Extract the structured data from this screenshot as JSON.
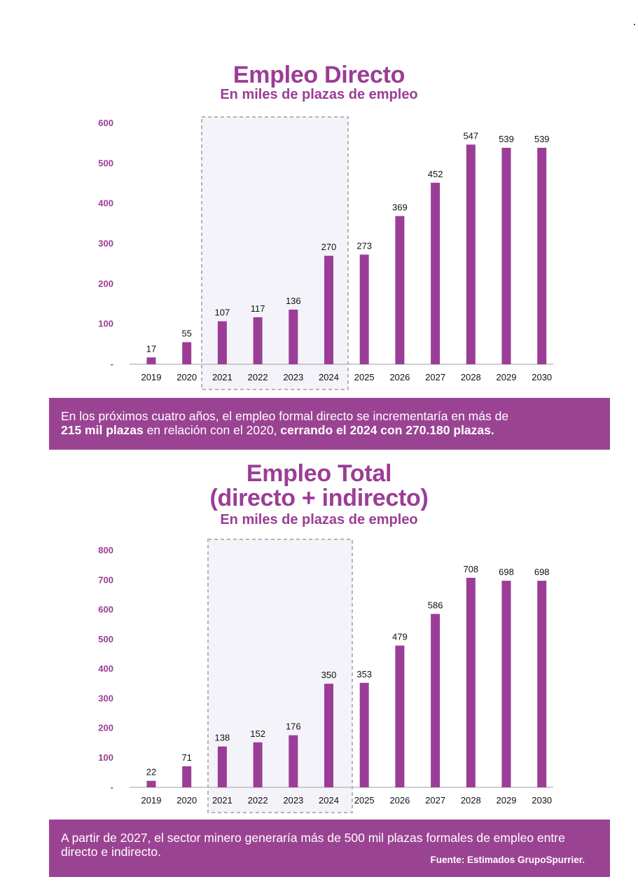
{
  "colors": {
    "bar": "#9b3d96",
    "accent": "#9b3d96",
    "banner": "#9b4393",
    "highlight_fill": "#f3f3f9",
    "highlight_border": "#b5b5b5"
  },
  "chart1": {
    "title": "Empleo Directo",
    "subtitle": "En miles de plazas de empleo"
  },
  "banner1": {
    "line1": "En los próximos cuatro años, el empleo formal directo se incrementaría en más de",
    "bold1": "215 mil plazas",
    "text2": " en relación con el 2020, ",
    "bold2": "cerrando el 2024 con 270.180 plazas."
  },
  "chart2": {
    "title_line1": "Empleo Total",
    "title_line2": "(directo + indirecto)",
    "subtitle": "En miles de plazas de empleo"
  },
  "banner2": {
    "text": "A partir de 2027, el sector minero generaría más de 500 mil plazas formales de empleo entre directo e indirecto.",
    "source": "Fuente: Estimados GrupoSpurrier."
  },
  "chart_data": [
    {
      "type": "bar",
      "title": "Empleo Directo",
      "subtitle": "En miles de plazas de empleo",
      "categories": [
        "2019",
        "2020",
        "2021",
        "2022",
        "2023",
        "2024",
        "2025",
        "2026",
        "2027",
        "2028",
        "2029",
        "2030"
      ],
      "values": [
        17,
        55,
        107,
        117,
        136,
        270,
        273,
        369,
        452,
        547,
        539,
        539
      ],
      "y_ticks": [
        "-",
        "100",
        "200",
        "300",
        "400",
        "500",
        "600"
      ],
      "ylim": [
        0,
        600
      ],
      "highlighted_range": [
        "2021",
        "2024"
      ],
      "grid": false
    },
    {
      "type": "bar",
      "title": "Empleo Total (directo + indirecto)",
      "subtitle": "En miles de plazas de empleo",
      "categories": [
        "2019",
        "2020",
        "2021",
        "2022",
        "2023",
        "2024",
        "2025",
        "2026",
        "2027",
        "2028",
        "2029",
        "2030"
      ],
      "values": [
        22,
        71,
        138,
        152,
        176,
        350,
        353,
        479,
        586,
        708,
        698,
        698
      ],
      "y_ticks": [
        "-",
        "100",
        "200",
        "300",
        "400",
        "500",
        "600",
        "700",
        "800"
      ],
      "ylim": [
        0,
        800
      ],
      "highlighted_range": [
        "2021",
        "2024"
      ],
      "grid": false
    }
  ]
}
